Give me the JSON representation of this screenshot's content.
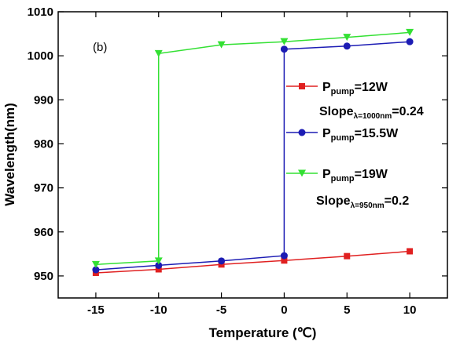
{
  "chart_data": {
    "type": "line",
    "panel_label": "(b)",
    "xlabel": "Temperature (℃)",
    "ylabel": "Wavelength(nm)",
    "xlim": [
      -18,
      13
    ],
    "ylim": [
      945,
      1010
    ],
    "xticks": [
      -15,
      -10,
      -5,
      0,
      5,
      10
    ],
    "yticks": [
      950,
      960,
      970,
      980,
      990,
      1000,
      1010
    ],
    "grid": false,
    "legend_position": "right",
    "series": [
      {
        "name_main": "P",
        "name_sub": "pump",
        "name_tail": "=12W",
        "color": "#e02020",
        "marker": "square",
        "x": [
          -15,
          -10,
          -5,
          0,
          5,
          10
        ],
        "y": [
          950.7,
          951.5,
          952.6,
          953.5,
          954.5,
          955.6
        ]
      },
      {
        "name_main": "P",
        "name_sub": "pump",
        "name_tail": "=15.5W",
        "color": "#1c1cb4",
        "marker": "circle",
        "x": [
          -15,
          -10,
          -5,
          0,
          0,
          5,
          10
        ],
        "y": [
          951.4,
          952.4,
          953.4,
          954.6,
          1001.5,
          1002.2,
          1003.2
        ]
      },
      {
        "name_main": "P",
        "name_sub": "pump",
        "name_tail": "=19W",
        "color": "#33e033",
        "marker": "triangle-down",
        "x": [
          -15,
          -10,
          -10,
          -5,
          0,
          5,
          10
        ],
        "y": [
          952.6,
          953.4,
          1000.5,
          1002.5,
          1003.2,
          1004.2,
          1005.3
        ]
      }
    ],
    "annotations": [
      {
        "main": "Slope",
        "sub": "λ=1000nm",
        "tail": "=0.24"
      },
      {
        "main": "Slope",
        "sub": "λ=950nm",
        "tail": "=0.2"
      }
    ]
  }
}
